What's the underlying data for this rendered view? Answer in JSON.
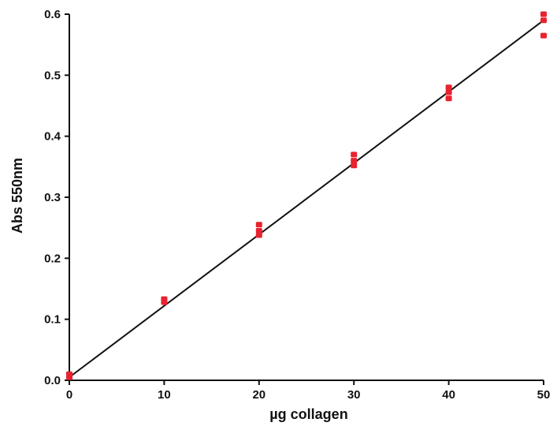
{
  "chart_data": {
    "type": "scatter",
    "xlabel": "µg collagen",
    "ylabel": "Abs 550nm",
    "xlim": [
      0,
      50
    ],
    "ylim": [
      0,
      0.6
    ],
    "x_ticks": [
      0,
      10,
      20,
      30,
      40,
      50
    ],
    "x_tick_labels": [
      "0",
      "10",
      "20",
      "30",
      "40",
      "50"
    ],
    "y_ticks": [
      0,
      0.1,
      0.2,
      0.3,
      0.4,
      0.5,
      0.6
    ],
    "y_tick_labels": [
      "0.0",
      "0.1",
      "0.2",
      "0.3",
      "0.4",
      "0.5",
      "0.6"
    ],
    "grid": false,
    "legend": "none",
    "series": [
      {
        "marker_color": "#e8232f",
        "points": [
          {
            "x": 0,
            "y": 0.005
          },
          {
            "x": 0,
            "y": 0.01
          },
          {
            "x": 10,
            "y": 0.128
          },
          {
            "x": 10,
            "y": 0.133
          },
          {
            "x": 20,
            "y": 0.238
          },
          {
            "x": 20,
            "y": 0.245
          },
          {
            "x": 20,
            "y": 0.255
          },
          {
            "x": 30,
            "y": 0.352
          },
          {
            "x": 30,
            "y": 0.36
          },
          {
            "x": 30,
            "y": 0.37
          },
          {
            "x": 40,
            "y": 0.462
          },
          {
            "x": 40,
            "y": 0.472
          },
          {
            "x": 40,
            "y": 0.48
          },
          {
            "x": 50,
            "y": 0.565
          },
          {
            "x": 50,
            "y": 0.59
          },
          {
            "x": 50,
            "y": 0.6
          }
        ]
      }
    ],
    "fit_line": {
      "color": "#111111",
      "from": {
        "x": 0,
        "y": 0.005
      },
      "to": {
        "x": 50,
        "y": 0.59
      }
    }
  }
}
